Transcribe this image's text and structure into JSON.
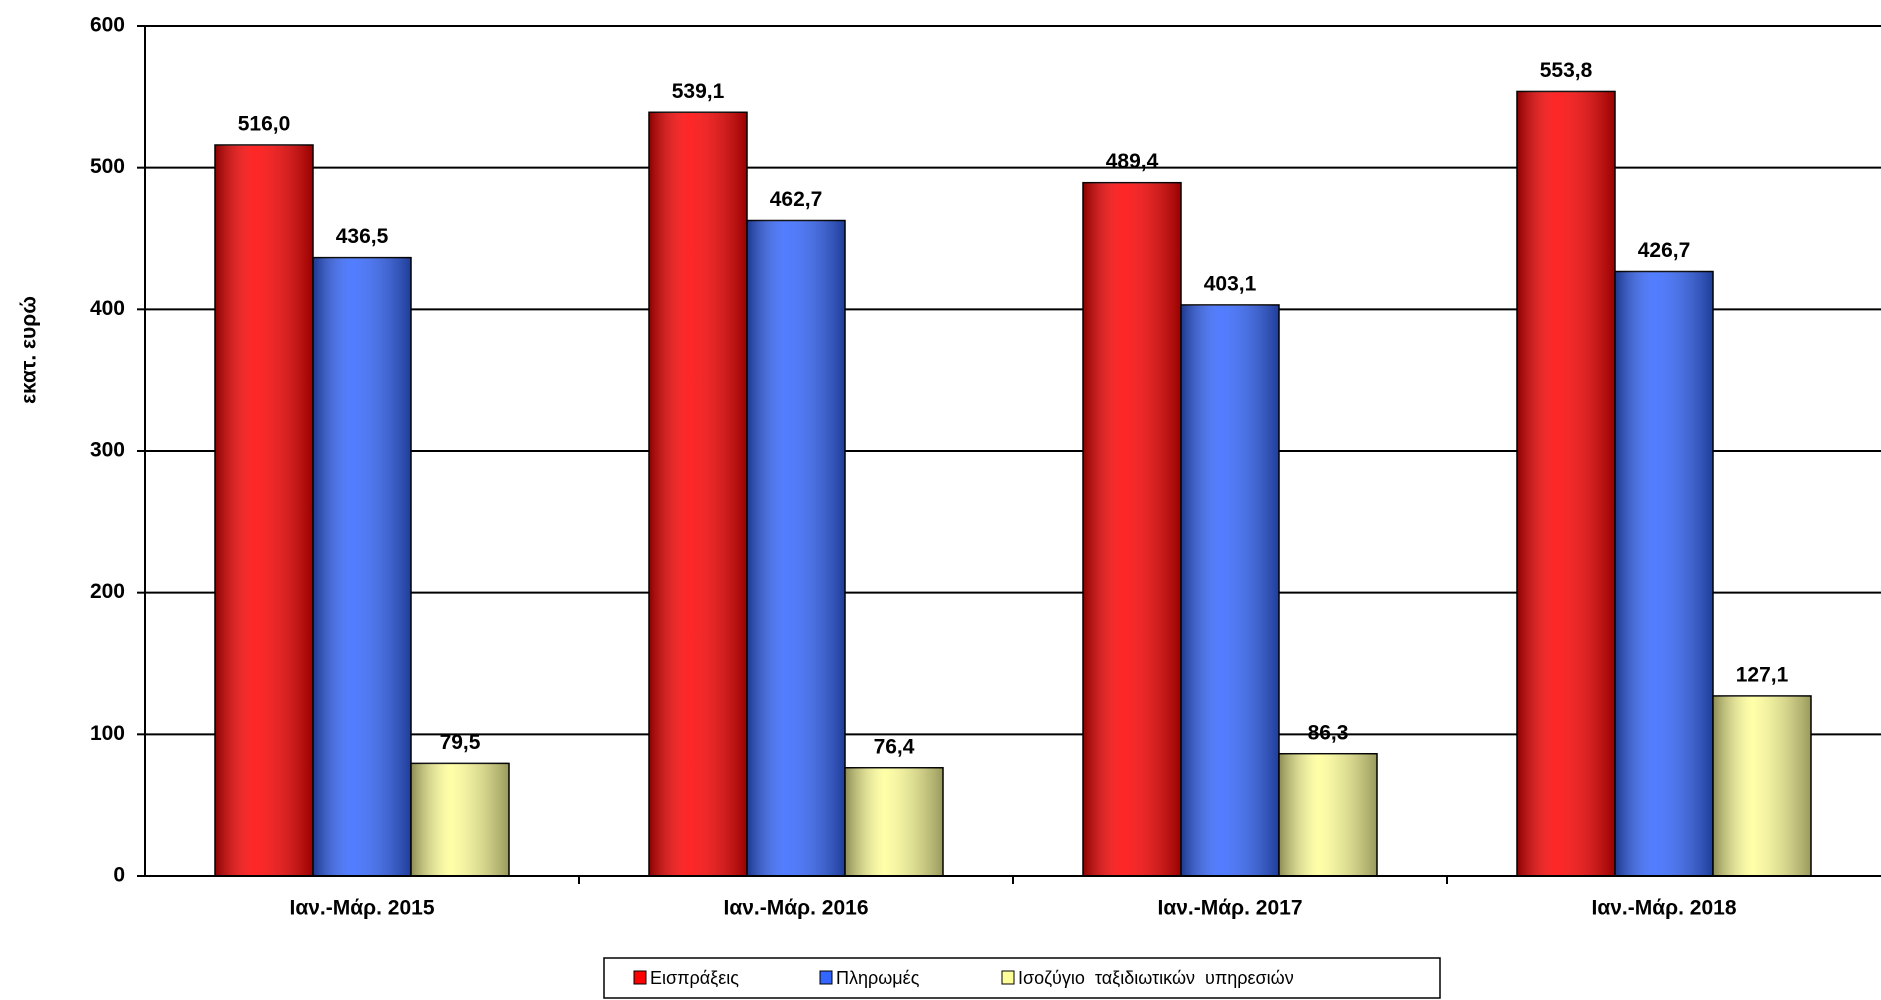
{
  "chart_data": {
    "type": "bar",
    "y_label": "εκατ. ευρώ",
    "categories": [
      "Ιαν.-Μάρ. 2015",
      "Ιαν.-Μάρ. 2016",
      "Ιαν.-Μάρ. 2017",
      "Ιαν.-Μάρ. 2018"
    ],
    "series": [
      {
        "name": "Εισπράξεις",
        "color": "#ff0000",
        "values": [
          516.0,
          539.1,
          489.4,
          553.8
        ],
        "value_labels": [
          "516,0",
          "539,1",
          "489,4",
          "553,8"
        ]
      },
      {
        "name": "Πληρωμές",
        "color": "#3366ff",
        "values": [
          436.5,
          462.7,
          403.1,
          426.7
        ],
        "value_labels": [
          "436,5",
          "462,7",
          "403,1",
          "426,7"
        ]
      },
      {
        "name": "Ισοζύγιο  ταξιδιωτικών  υπηρεσιών",
        "color": "#ffff99",
        "values": [
          79.5,
          76.4,
          86.3,
          127.1
        ],
        "value_labels": [
          "79,5",
          "76,4",
          "86,3",
          "127,1"
        ]
      }
    ],
    "ylim": [
      0,
      600
    ],
    "yticks": [
      0,
      100,
      200,
      300,
      400,
      500,
      600
    ],
    "grid": true,
    "legend": "bottom"
  }
}
